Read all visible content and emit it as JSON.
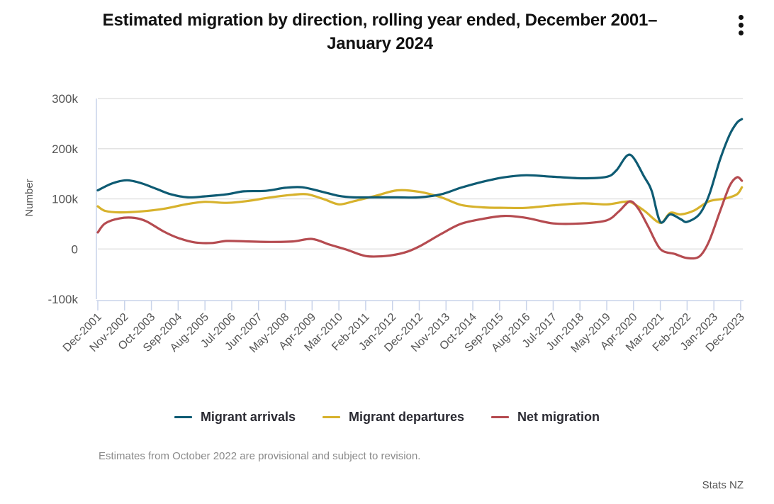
{
  "header": {
    "title": "Estimated migration by direction, rolling year ended, December 2001–January 2024",
    "menu_icon": "vertical-ellipsis-icon"
  },
  "footer": {
    "note": "Estimates from October 2022 are provisional and subject to revision.",
    "source": "Stats NZ"
  },
  "chart_data": {
    "type": "line",
    "title": "Estimated migration by direction, rolling year ended, December 2001–January 2024",
    "xlabel": "",
    "ylabel": "Number",
    "ylim": [
      -100000,
      300000
    ],
    "yticks": [
      -100000,
      0,
      100000,
      200000,
      300000
    ],
    "ytick_labels": [
      "-100k",
      "0",
      "100k",
      "200k",
      "300k"
    ],
    "x_unit": "months since Dec-2001",
    "xlim": [
      0,
      264
    ],
    "xticks": [
      0,
      11,
      22,
      33,
      44,
      55,
      66,
      77,
      88,
      99,
      110,
      121,
      132,
      143,
      154,
      165,
      176,
      187,
      198,
      209,
      220,
      231,
      242,
      253,
      264
    ],
    "xtick_labels": [
      "Dec-2001",
      "Nov-2002",
      "Oct-2003",
      "Sep-2004",
      "Aug-2005",
      "Jul-2006",
      "Jun-2007",
      "May-2008",
      "Apr-2009",
      "Mar-2010",
      "Feb-2011",
      "Jan-2012",
      "Dec-2012",
      "Nov-2013",
      "Oct-2014",
      "Sep-2015",
      "Aug-2016",
      "Jul-2017",
      "Jun-2018",
      "May-2019",
      "Apr-2020",
      "Mar-2021",
      "Feb-2022",
      "Jan-2023",
      "Dec-2023"
    ],
    "grid": true,
    "legend_position": "bottom",
    "series": [
      {
        "name": "Migrant arrivals",
        "color": "#0e5b73",
        "x": [
          0,
          6,
          12,
          18,
          24,
          30,
          37,
          44,
          53,
          60,
          69,
          77,
          84,
          93,
          99,
          105,
          114,
          123,
          132,
          141,
          149,
          158,
          167,
          176,
          187,
          199,
          209,
          213,
          218.5,
          224.5,
          227.5,
          231,
          235,
          239.5,
          242,
          247,
          251,
          255.5,
          259.5,
          262.5,
          264.5
        ],
        "values": [
          117000,
          131000,
          137000,
          131000,
          120000,
          109000,
          103000,
          105000,
          109000,
          115000,
          116000,
          122000,
          123000,
          113000,
          106000,
          103000,
          103000,
          103000,
          103000,
          109000,
          122000,
          134000,
          143000,
          147000,
          144000,
          141000,
          144000,
          157000,
          188000,
          143000,
          115000,
          54000,
          69000,
          59000,
          54000,
          69000,
          107000,
          178000,
          228000,
          252000,
          259000
        ]
      },
      {
        "name": "Migrant departures",
        "color": "#d7b22c",
        "x": [
          0,
          3,
          9,
          18,
          27,
          36,
          44,
          53,
          62,
          71,
          80,
          86,
          93,
          99,
          105,
          114,
          123,
          132,
          141,
          149,
          158,
          167,
          176,
          187,
          199,
          209,
          216,
          219,
          224.5,
          231,
          235,
          239.5,
          245,
          251,
          258,
          262.5,
          264.5
        ],
        "values": [
          85000,
          76000,
          73000,
          75000,
          80000,
          89000,
          94000,
          92000,
          96000,
          103000,
          108000,
          109000,
          99000,
          89000,
          95000,
          106000,
          117000,
          114000,
          103000,
          88000,
          83000,
          82000,
          82000,
          87000,
          91000,
          89000,
          94000,
          93000,
          76000,
          52000,
          72000,
          69000,
          77000,
          95000,
          101000,
          109000,
          123000
        ]
      },
      {
        "name": "Net migration",
        "color": "#b54b50",
        "x": [
          0,
          3,
          9,
          15,
          20,
          27,
          33,
          40,
          47,
          53,
          62,
          71,
          80,
          88,
          95,
          102,
          110,
          118,
          126,
          132,
          141,
          149,
          158,
          167,
          176,
          187,
          199,
          209,
          214,
          218.5,
          222,
          226,
          231,
          237,
          242,
          247,
          251,
          255.5,
          259.5,
          262.5,
          264.5
        ],
        "values": [
          33000,
          51000,
          61000,
          62000,
          55000,
          35000,
          22000,
          13000,
          12000,
          16000,
          15000,
          14000,
          15000,
          20000,
          9000,
          -1000,
          -14000,
          -14000,
          -7000,
          5000,
          30000,
          50000,
          60000,
          66000,
          62000,
          51000,
          51000,
          57000,
          75000,
          95000,
          80000,
          45000,
          0,
          -10000,
          -18000,
          -15000,
          15000,
          75000,
          126000,
          143000,
          136000
        ]
      }
    ]
  }
}
